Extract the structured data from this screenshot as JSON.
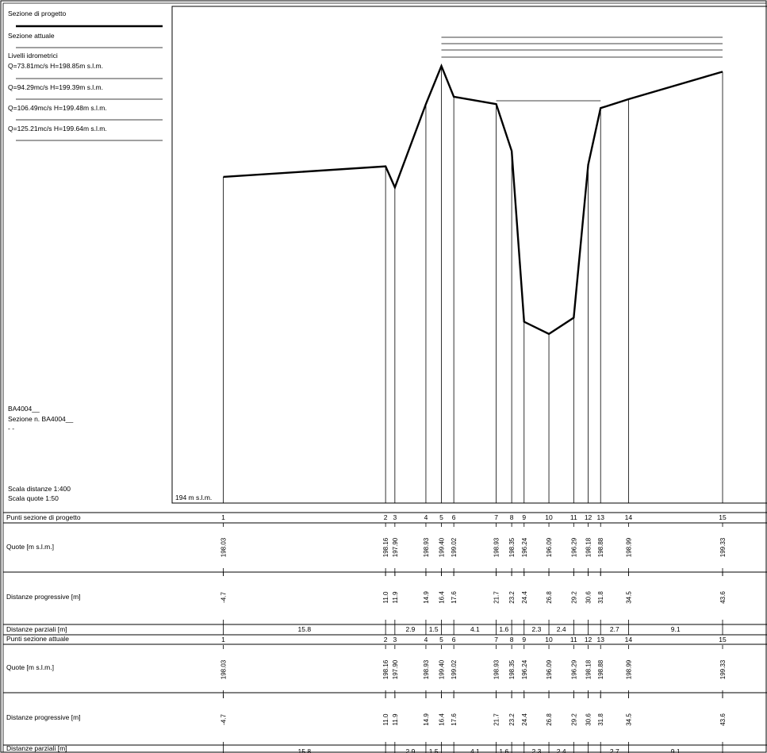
{
  "legend": {
    "project_section": "Sezione di progetto",
    "current_section": "Sezione attuale",
    "water_levels_title": "Livelli idrometrici",
    "levels": [
      "Q=73.81mc/s  H=198.85m s.l.m.",
      "Q=94.29mc/s  H=199.39m s.l.m.",
      "Q=106.49mc/s  H=199.48m s.l.m.",
      "Q=125.21mc/s  H=199.64m s.l.m."
    ]
  },
  "section_info": {
    "code": "BA4004__",
    "name": "Sezione n. BA4004__",
    "extra": "- -"
  },
  "scales": {
    "distances": "Scala distanze 1:400",
    "heights": "Scala quote    1:50"
  },
  "datum_label": "194 m s.l.m.",
  "table_labels": {
    "punti_progetto": "Punti sezione di progetto",
    "quote": "Quote [m s.l.m.]",
    "dist_prog": "Distanze progressive [m]",
    "dist_parz": "Distanze parziali [m]",
    "punti_attuale": "Punti sezione attuale"
  },
  "chart_data": {
    "type": "line",
    "datum": 194,
    "series": [
      {
        "name": "Sezione di progetto",
        "points": [
          1,
          2,
          3,
          4,
          5,
          6,
          7,
          8,
          9,
          10,
          11,
          12,
          13,
          14,
          15
        ],
        "x": [
          -4.7,
          11.0,
          11.9,
          14.9,
          16.4,
          17.6,
          21.7,
          23.2,
          24.4,
          26.8,
          29.2,
          30.6,
          31.8,
          34.5,
          43.6
        ],
        "y": [
          198.03,
          198.16,
          197.9,
          198.93,
          199.4,
          199.02,
          198.93,
          198.35,
          196.24,
          196.09,
          196.29,
          198.18,
          198.88,
          198.99,
          199.33
        ]
      },
      {
        "name": "Sezione attuale",
        "points": [
          1,
          2,
          3,
          4,
          5,
          6,
          7,
          8,
          9,
          10,
          11,
          12,
          13,
          14,
          15
        ],
        "x": [
          -4.7,
          11.0,
          11.9,
          14.9,
          16.4,
          17.6,
          21.7,
          23.2,
          24.4,
          26.8,
          29.2,
          30.6,
          31.8,
          34.5,
          43.6
        ],
        "y": [
          198.03,
          198.16,
          197.9,
          198.93,
          199.4,
          199.02,
          198.93,
          198.35,
          196.24,
          196.09,
          196.29,
          198.18,
          198.88,
          198.99,
          199.33
        ]
      }
    ],
    "water_levels": [
      198.85,
      199.39,
      199.48,
      199.64
    ],
    "partial_distances": [
      {
        "value": "15.8"
      },
      {
        "value": ""
      },
      {
        "value": "2.9"
      },
      {
        "value": "1.5"
      },
      {
        "value": ""
      },
      {
        "value": "4.1"
      },
      {
        "value": "1.6"
      },
      {
        "value": ""
      },
      {
        "value": "2.3"
      },
      {
        "value": "2.4"
      },
      {
        "value": ""
      },
      {
        "value": ""
      },
      {
        "value": "2.7"
      },
      {
        "value": "9.1"
      }
    ]
  }
}
